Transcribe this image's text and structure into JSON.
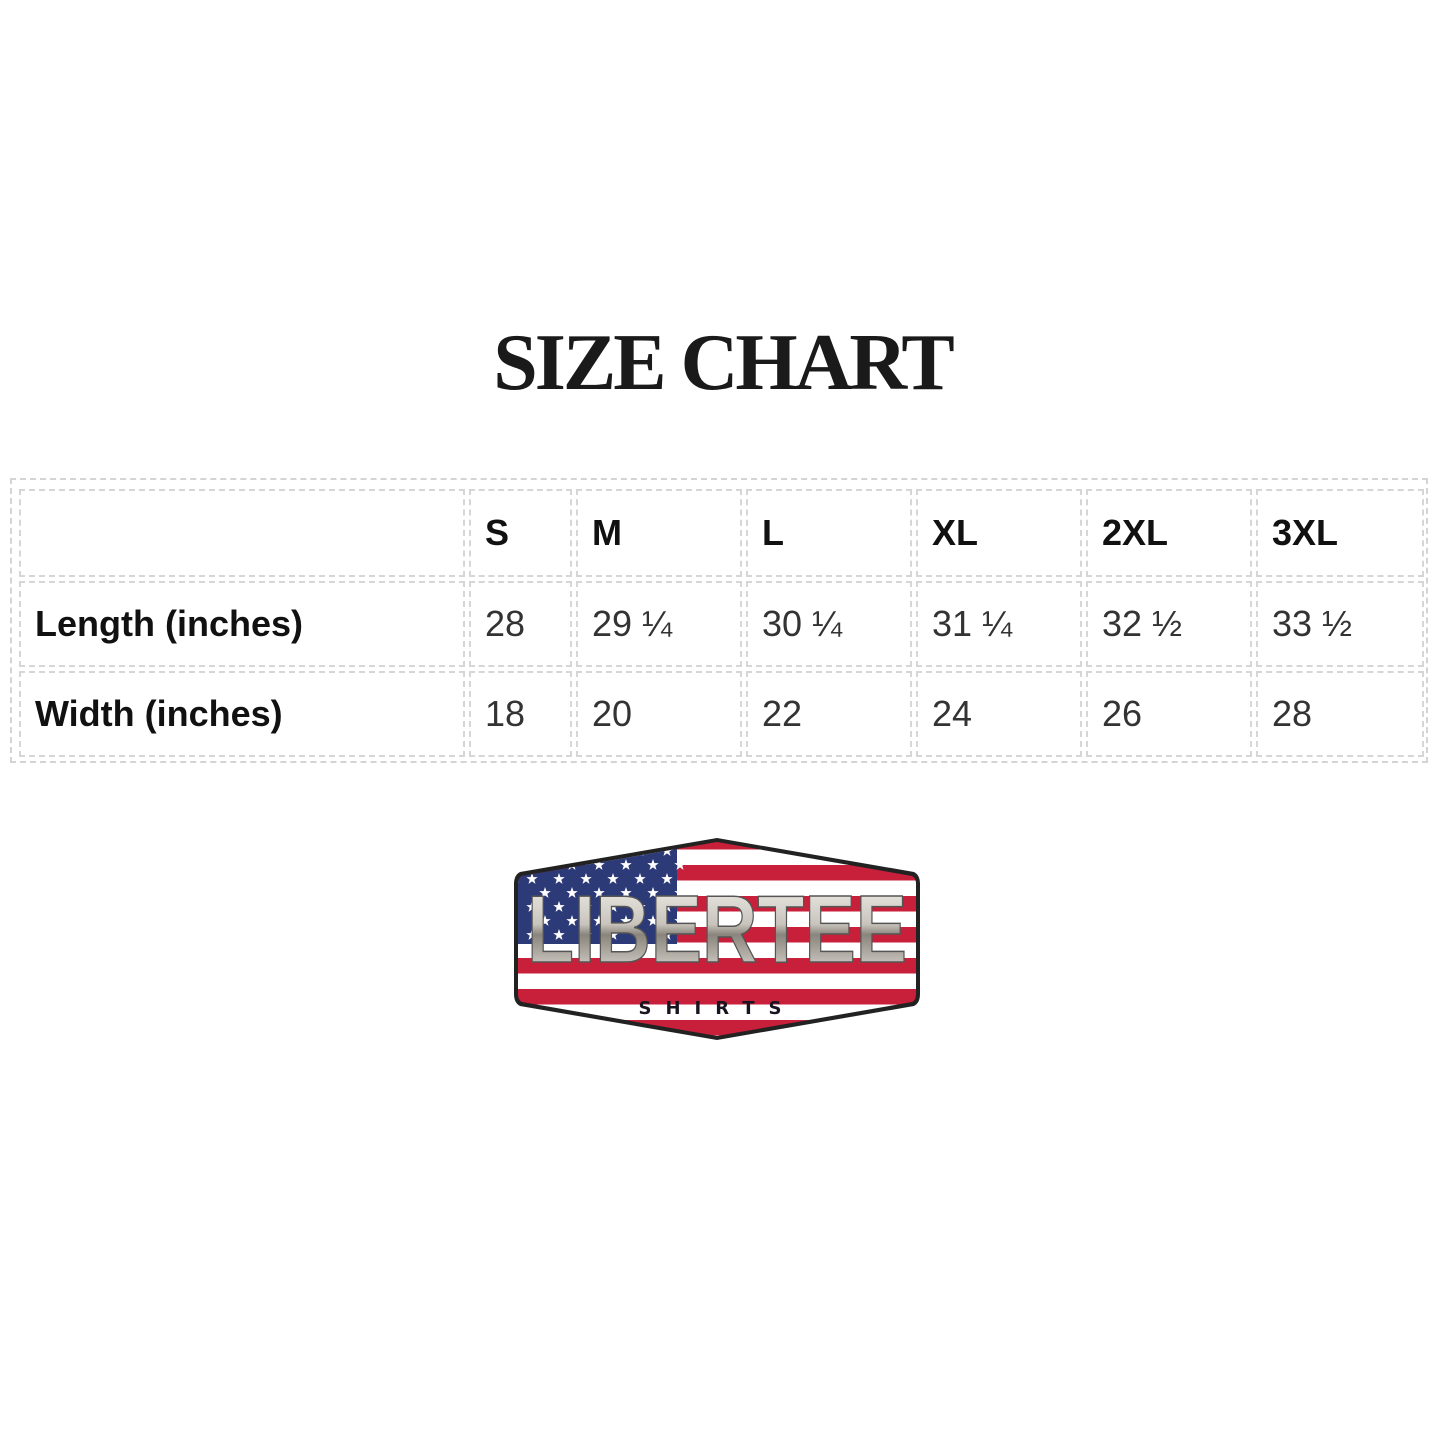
{
  "title": "SIZE CHART",
  "table": {
    "headers": [
      "",
      "S",
      "M",
      "L",
      "XL",
      "2XL",
      "3XL"
    ],
    "rows": [
      {
        "label": "Length (inches)",
        "values": [
          "28",
          "29 ¼",
          "30 ¼",
          "31 ¼",
          "32 ½",
          "33 ½"
        ]
      },
      {
        "label": "Width (inches)",
        "values": [
          "18",
          "20",
          "22",
          "24",
          "26",
          "28"
        ]
      }
    ]
  },
  "logo": {
    "text": "LIBERTEE",
    "subtext": "SHIRTS",
    "colors": {
      "red": "#c8203a",
      "blue": "#2d3a78",
      "white": "#ffffff"
    }
  }
}
